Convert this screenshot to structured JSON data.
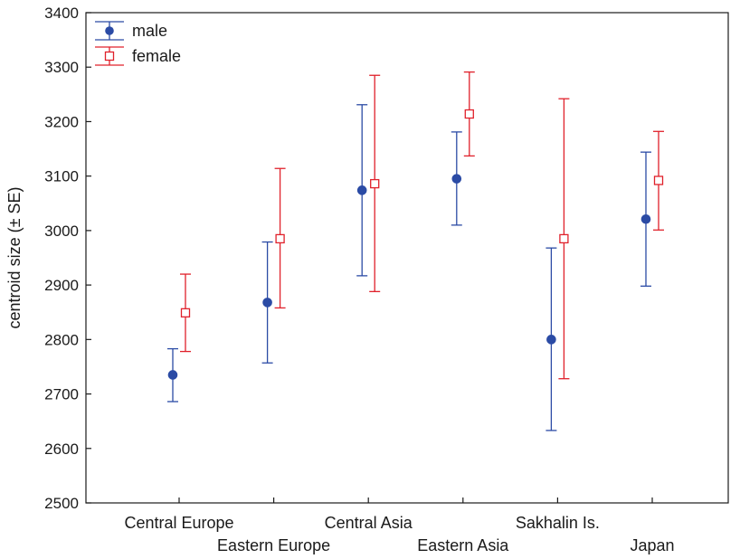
{
  "chart_data": {
    "type": "scatter",
    "title": "",
    "xlabel": "",
    "ylabel": "centroid size (± SE)",
    "ylim": [
      2500,
      3400
    ],
    "yticks": [
      2500,
      2600,
      2700,
      2800,
      2900,
      3000,
      3100,
      3200,
      3300,
      3400
    ],
    "grid": false,
    "legend_position": "top-left",
    "categories": [
      "Central Europe",
      "Eastern Europe",
      "Central Asia",
      "Eastern Asia",
      "Sakhalin Is.",
      "Japan"
    ],
    "series": [
      {
        "name": "male",
        "color": "#2b4ba5",
        "marker": "filled-circle",
        "values": [
          2735,
          2868,
          3074,
          3095,
          2800,
          3021
        ],
        "se_low": [
          2686,
          2757,
          2917,
          3010,
          2633,
          2898
        ],
        "se_high": [
          2783,
          2979,
          3231,
          3181,
          2968,
          3144
        ]
      },
      {
        "name": "female",
        "color": "#e0212b",
        "marker": "open-square",
        "values": [
          2849,
          2985,
          3086,
          3214,
          2985,
          3092
        ],
        "se_low": [
          2778,
          2858,
          2888,
          3137,
          2728,
          3001
        ],
        "se_high": [
          2920,
          3114,
          3285,
          3291,
          3242,
          3182
        ]
      }
    ]
  }
}
